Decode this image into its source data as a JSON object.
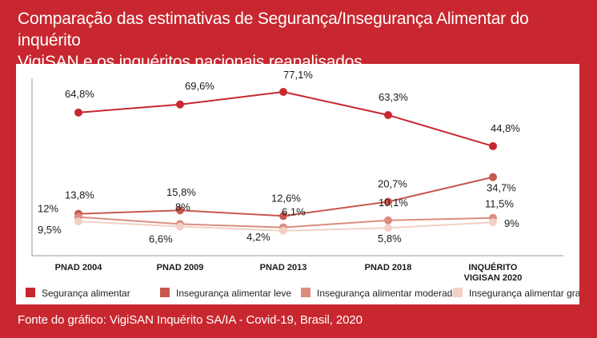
{
  "title_line1": "Comparação das estimativas de Segurança/Insegurança Alimentar do inquérito",
  "title_line2": "VigiSAN e os inquéritos nacionais reanalisados",
  "footer": "Fonte do gráfico: VigiSAN Inquérito SA/IA - Covid-19, Brasil, 2020",
  "chart_data": {
    "type": "line",
    "title": "Comparação das estimativas de Segurança/Insegurança Alimentar do inquérito VigiSAN e os inquéritos nacionais reanalisados",
    "categories": [
      [
        "PNAD 2004"
      ],
      [
        "PNAD 2009"
      ],
      [
        "PNAD 2013"
      ],
      [
        "PNAD 2018"
      ],
      [
        "INQUÉRITO",
        "VIGISAN 2020"
      ]
    ],
    "xlabel": "",
    "ylabel": "",
    "grid": false,
    "legend_position": "bottom",
    "series": [
      {
        "name": "Segurança alimentar",
        "values": [
          64.8,
          69.6,
          77.1,
          63.3,
          44.8
        ],
        "labels": [
          "64,8%",
          "69,6%",
          "77,1%",
          "63,3%",
          "44,8%"
        ],
        "color": "#c8272f"
      },
      {
        "name": "Insegurança alimentar leve",
        "values": [
          13.8,
          15.8,
          12.6,
          20.7,
          34.7
        ],
        "labels": [
          "13,8%",
          "15,8%",
          "12,6%",
          "20,7%",
          "34,7%"
        ],
        "color": "#c9574e"
      },
      {
        "name": "Insegurança alimentar moderada",
        "values": [
          12,
          8,
          6.1,
          10.1,
          11.5
        ],
        "labels": [
          "12%",
          "8%",
          "6,1%",
          "10,1%",
          "11,5%"
        ],
        "color": "#dc8c7e"
      },
      {
        "name": "Insegurança alimentar grave",
        "values": [
          9.5,
          6.6,
          4.2,
          5.8,
          9
        ],
        "labels": [
          "9,5%",
          "6,6%",
          "4,2%",
          "5,8%",
          "9%"
        ],
        "color": "#f2d0c6"
      }
    ]
  }
}
